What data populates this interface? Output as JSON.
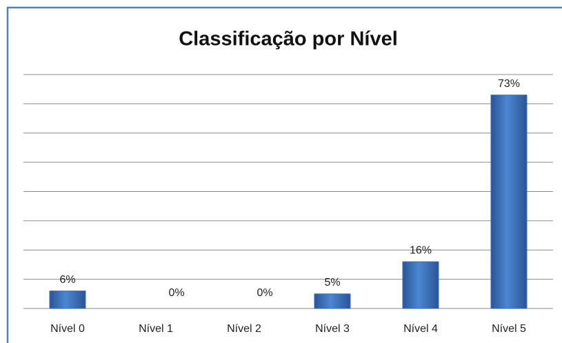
{
  "chart_data": {
    "type": "bar",
    "title": "Classificação por Nível",
    "categories": [
      "Nível 0",
      "Nível 1",
      "Nível 2",
      "Nível 3",
      "Nível 4",
      "Nível 5"
    ],
    "values": [
      6,
      0,
      0,
      5,
      16,
      73
    ],
    "value_labels": [
      "6%",
      "0%",
      "0%",
      "5%",
      "16%",
      "73%"
    ],
    "color": "#3a6fb8",
    "ylim": [
      0,
      80
    ],
    "yticks": [
      0,
      10,
      20,
      30,
      40,
      50,
      60,
      70,
      80
    ],
    "grid": true
  }
}
